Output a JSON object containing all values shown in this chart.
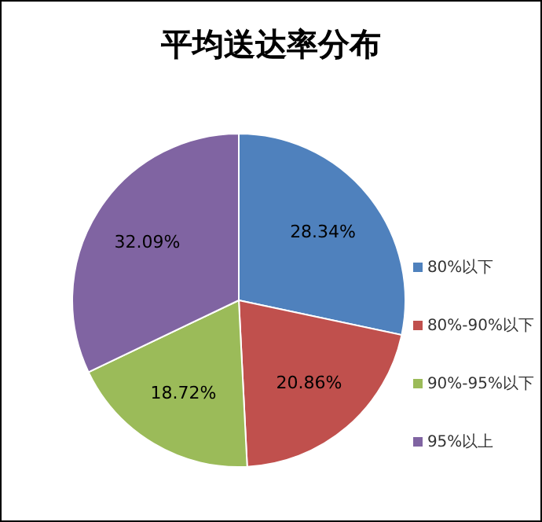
{
  "chart_data": {
    "type": "pie",
    "title": "平均送达率分布",
    "categories": [
      "80%以下",
      "80%-90%以下",
      "90%-95%以下",
      "95%以上"
    ],
    "values": [
      28.34,
      20.86,
      18.72,
      32.09
    ],
    "value_labels": [
      "28.34%",
      "20.86%",
      "18.72%",
      "32.09%"
    ],
    "colors": [
      "#4f81bd",
      "#c0504d",
      "#9bbb59",
      "#8064a2"
    ],
    "legend": "right"
  }
}
